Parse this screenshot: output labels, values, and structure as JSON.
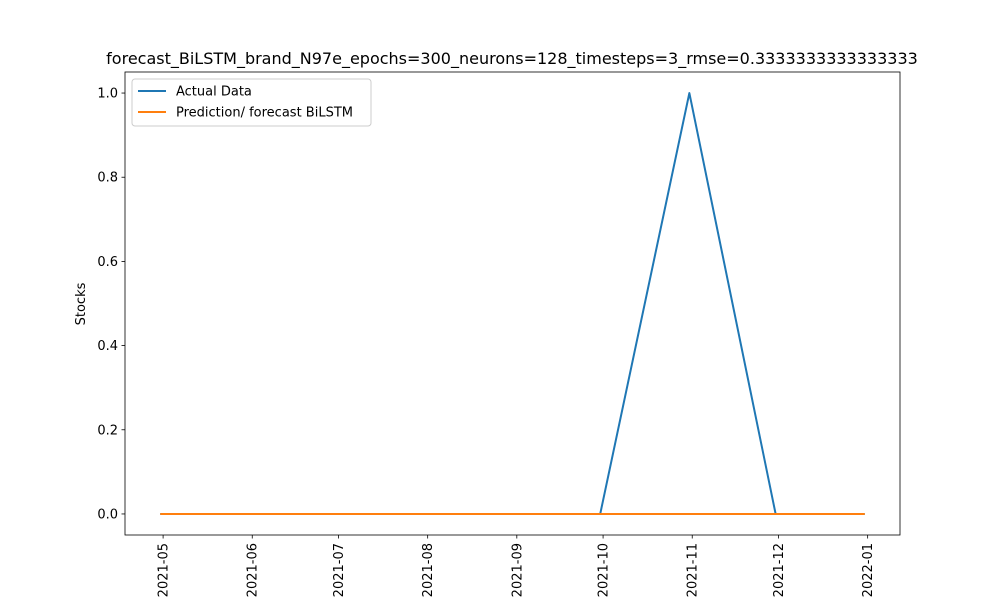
{
  "chart_data": {
    "type": "line",
    "title": "forecast_BiLSTM_brand_N97e_epochs=300_neurons=128_timesteps=3_rmse=0.3333333333333333",
    "xlabel": "",
    "ylabel": "Stocks",
    "x": [
      "2021-04-30",
      "2021-05-31",
      "2021-06-30",
      "2021-07-31",
      "2021-08-31",
      "2021-09-30",
      "2021-10-31",
      "2021-11-30",
      "2021-12-31"
    ],
    "x_ticks": [
      "2021-05",
      "2021-06",
      "2021-07",
      "2021-08",
      "2021-09",
      "2021-10",
      "2021-11",
      "2021-12",
      "2022-01"
    ],
    "y_ticks": [
      "0.0",
      "0.2",
      "0.4",
      "0.6",
      "0.8",
      "1.0"
    ],
    "ylim": [
      -0.05,
      1.05
    ],
    "grid": false,
    "legend_position": "upper-left",
    "series": [
      {
        "name": "Actual Data",
        "color": "#1f77b4",
        "values": [
          0,
          0,
          0,
          0,
          0,
          0,
          1,
          0,
          0
        ]
      },
      {
        "name": "Prediction/ forecast BiLSTM",
        "color": "#ff7f0e",
        "values": [
          0,
          0,
          0,
          0,
          0,
          0,
          0,
          0,
          0
        ]
      }
    ]
  }
}
